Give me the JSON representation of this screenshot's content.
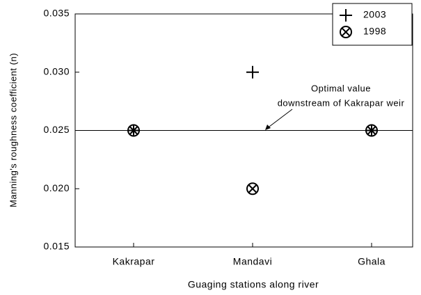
{
  "chart_data": {
    "type": "scatter",
    "x_label": "Guaging stations along river",
    "y_label": "Manning's roughness coefficient (n)",
    "categories": [
      "Kakrapar",
      "Mandavi",
      "Ghala"
    ],
    "series": [
      {
        "name": "2003",
        "color": "#000000",
        "marker": "plus",
        "values": [
          0.025,
          0.03,
          0.025
        ]
      },
      {
        "name": "1998",
        "color": "#000000",
        "marker": "circle-x",
        "values": [
          0.025,
          0.02,
          0.025
        ]
      }
    ],
    "ylim": [
      0.015,
      0.035
    ],
    "yticks": [
      0.015,
      {
        "value": 0.02,
        "label": "0.020"
      },
      0.025,
      {
        "value": 0.03,
        "label": "0.030"
      },
      0.035
    ],
    "reference_line": {
      "value": 0.025,
      "annotation": [
        "Optimal value",
        "downstream of Kakrapar weir"
      ]
    },
    "legend": "upper right"
  }
}
